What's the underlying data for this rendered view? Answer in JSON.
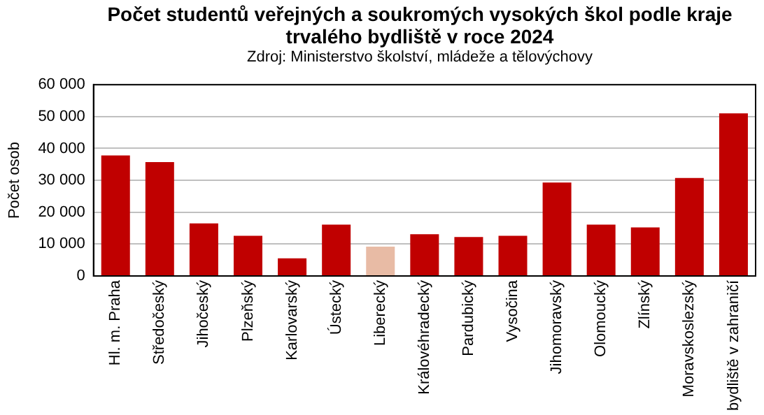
{
  "chart_data": {
    "type": "bar",
    "title": "Počet studentů veřejných a soukromých vysokých škol podle kraje trvalého bydliště v roce 2024",
    "subtitle": "Zdroj: Ministerstvo školství, mládeže a tělovýchovy",
    "ylabel": "Počet osob",
    "categories": [
      "Hl. m. Praha",
      "Středočeský",
      "Jihočeský",
      "Plzeňský",
      "Karlovarský",
      "Ústecký",
      "Liberecký",
      "Královéhradecký",
      "Pardubický",
      "Vysočina",
      "Jihomoravský",
      "Olomoucký",
      "Zlínský",
      "Moravskoslezský",
      "bydliště v zahraničí"
    ],
    "values": [
      37800,
      35700,
      16500,
      12600,
      5500,
      16100,
      9200,
      13100,
      12200,
      12600,
      29300,
      16100,
      15200,
      30700,
      51000
    ],
    "colors": [
      "#c00000",
      "#c00000",
      "#c00000",
      "#c00000",
      "#c00000",
      "#c00000",
      "#e8bba5",
      "#c00000",
      "#c00000",
      "#c00000",
      "#c00000",
      "#c00000",
      "#c00000",
      "#c00000",
      "#c00000"
    ],
    "ylim": [
      0,
      60000
    ],
    "yticks": [
      {
        "value": 0,
        "label": "0"
      },
      {
        "value": 10000,
        "label": "10 000"
      },
      {
        "value": 20000,
        "label": "20 000"
      },
      {
        "value": 30000,
        "label": "30 000"
      },
      {
        "value": 40000,
        "label": "40 000"
      },
      {
        "value": 50000,
        "label": "50 000"
      },
      {
        "value": 60000,
        "label": "60 000"
      }
    ],
    "grid": "y",
    "legend": false
  }
}
